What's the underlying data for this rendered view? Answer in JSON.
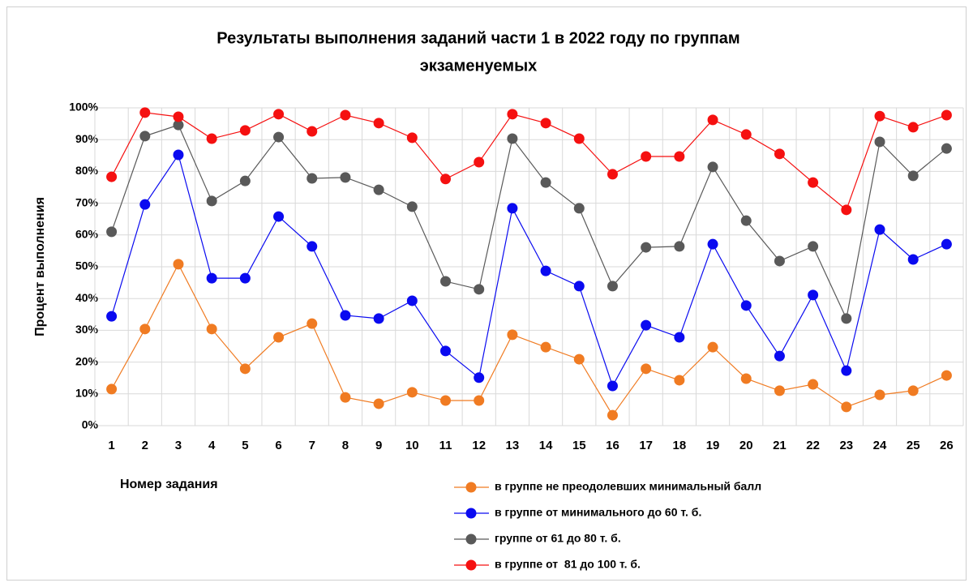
{
  "chart_data": {
    "type": "line",
    "title": [
      "Результаты выполнения заданий части 1 в 2022 году по группам",
      "экзаменуемых"
    ],
    "x_label": "Номер задания",
    "y_label": "Процент выполнения",
    "categories": [
      "1",
      "2",
      "3",
      "4",
      "5",
      "6",
      "7",
      "8",
      "9",
      "10",
      "11",
      "12",
      "13",
      "14",
      "15",
      "16",
      "17",
      "18",
      "19",
      "20",
      "21",
      "22",
      "23",
      "24",
      "25",
      "26"
    ],
    "ylim": [
      0,
      100
    ],
    "yticks": [
      {
        "value": 0,
        "label": "0%"
      },
      {
        "value": 10,
        "label": "10%"
      },
      {
        "value": 20,
        "label": "20%"
      },
      {
        "value": 30,
        "label": "30%"
      },
      {
        "value": 40,
        "label": "40%"
      },
      {
        "value": 50,
        "label": "50%"
      },
      {
        "value": 60,
        "label": "60%"
      },
      {
        "value": 70,
        "label": "70%"
      },
      {
        "value": 80,
        "label": "80%"
      },
      {
        "value": 90,
        "label": "90%"
      },
      {
        "value": 100,
        "label": "100%"
      }
    ],
    "grid": true,
    "legend": "bottom-right",
    "series": [
      {
        "name": "в группе не преодолевших минимальный балл",
        "color": "#f07b22",
        "values": [
          11.5,
          30.4,
          50.8,
          30.4,
          17.9,
          27.8,
          32.1,
          8.9,
          6.9,
          10.5,
          7.9,
          7.9,
          28.6,
          24.7,
          20.9,
          3.3,
          17.9,
          14.3,
          24.7,
          14.8,
          11,
          13,
          5.9,
          9.7,
          11,
          15.8
        ]
      },
      {
        "name": "в группе от минимального до 60 т. б.",
        "color": "#0a0af0",
        "values": [
          34.4,
          69.6,
          85.2,
          46.4,
          46.4,
          65.8,
          56.4,
          34.7,
          33.7,
          39.3,
          23.5,
          15.1,
          68.4,
          48.7,
          43.9,
          12.5,
          31.6,
          27.8,
          57.1,
          37.8,
          21.9,
          41.1,
          17.3,
          61.7,
          52.3,
          57.1
        ]
      },
      {
        "name": "группе от 61 до 80 т. б.",
        "color": "#595959",
        "values": [
          61,
          91.1,
          94.6,
          70.7,
          77,
          90.8,
          77.8,
          78.1,
          74.2,
          68.9,
          45.4,
          42.9,
          90.3,
          76.5,
          68.4,
          43.9,
          56.1,
          56.4,
          81.4,
          64.5,
          51.8,
          56.4,
          33.7,
          89.3,
          78.6,
          87.2
        ]
      },
      {
        "name": "в группе от  81 до 100 т. б.",
        "color": "#f51010",
        "values": [
          78.3,
          98.5,
          97.2,
          90.3,
          92.9,
          98,
          92.6,
          97.7,
          95.2,
          90.6,
          77.6,
          82.9,
          98,
          95.2,
          90.3,
          79.1,
          84.7,
          84.7,
          96.2,
          91.6,
          85.5,
          76.5,
          67.9,
          97.4,
          93.9,
          97.7
        ]
      }
    ]
  }
}
